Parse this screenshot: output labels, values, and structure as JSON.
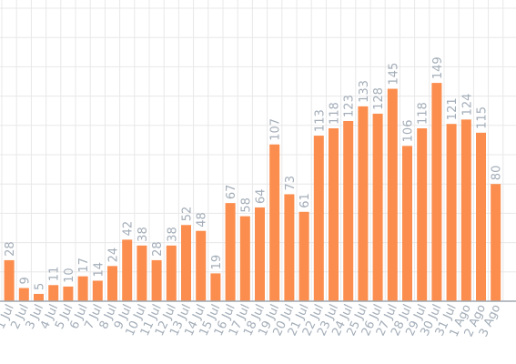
{
  "chart_data": {
    "type": "bar",
    "categories": [
      "1 Jul",
      "2 Jul",
      "3 Jul",
      "4 Jul",
      "5 Jul",
      "6 Jul",
      "7 Jul",
      "8 Jul",
      "9 Jul",
      "10 Jul",
      "11 Jul",
      "12 Jul",
      "13 Jul",
      "14 Jul",
      "15 Jul",
      "16 Jul",
      "17 Jul",
      "18 Jul",
      "19 Jul",
      "20 Jul",
      "21 Jul",
      "22 Jul",
      "23 Jul",
      "24 Jul",
      "25 Jul",
      "26 Jul",
      "27 Jul",
      "28 Jul",
      "29 Jul",
      "30 Jul",
      "31 Jul",
      "1 Ago",
      "2 Ago",
      "3 Ago"
    ],
    "values": [
      28,
      9,
      5,
      11,
      10,
      17,
      14,
      24,
      42,
      38,
      28,
      38,
      52,
      48,
      19,
      67,
      58,
      64,
      107,
      73,
      61,
      113,
      118,
      123,
      133,
      128,
      145,
      106,
      118,
      149,
      121,
      124,
      115,
      80
    ],
    "color": "#fb8d4e",
    "ylim": [
      0,
      200
    ],
    "yticks": [
      0,
      20,
      40,
      60,
      80,
      100,
      120,
      140,
      160,
      180,
      200
    ],
    "grid": true
  }
}
